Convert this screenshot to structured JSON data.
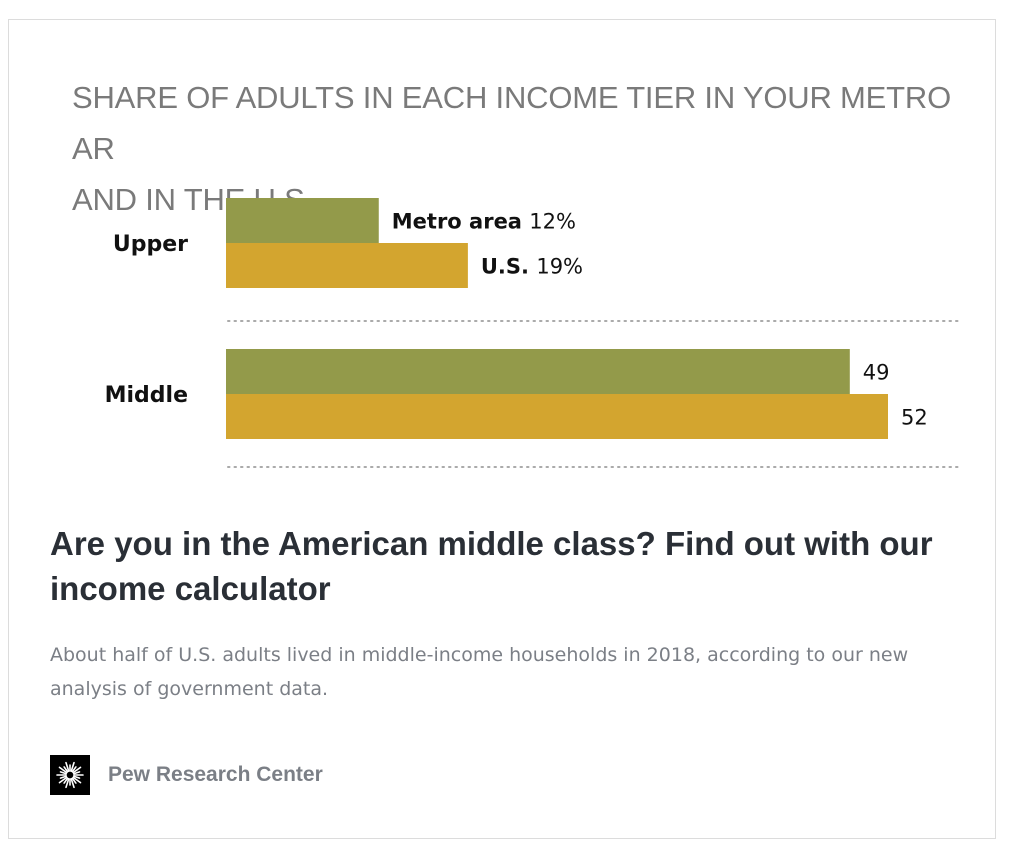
{
  "card": {
    "headline": "Are you in the American middle class? Find out with our income calculator",
    "description": "About half of U.S. adults lived in middle-income households in 2018, according to our new analysis of government data.",
    "source_name": "Pew Research Center",
    "source_logo_icon": "pew-sunburst-icon"
  },
  "chart_data": {
    "type": "bar",
    "orientation": "horizontal",
    "title": "SHARE OF ADULTS IN EACH INCOME TIER IN YOUR METRO AR\nAND IN THE U.S.",
    "categories": [
      "Upper",
      "Middle"
    ],
    "series": [
      {
        "name": "Metro area",
        "color": "#939a4a",
        "values": [
          12,
          49
        ],
        "value_labels": [
          "12%",
          "49"
        ]
      },
      {
        "name": "U.S.",
        "color": "#d3a52f",
        "values": [
          19,
          52
        ],
        "value_labels": [
          "19%",
          "52"
        ]
      }
    ],
    "xlim": [
      0,
      52
    ],
    "grid": false,
    "legend": "inline labels on first category",
    "separator_color": "#aaaaaa"
  }
}
